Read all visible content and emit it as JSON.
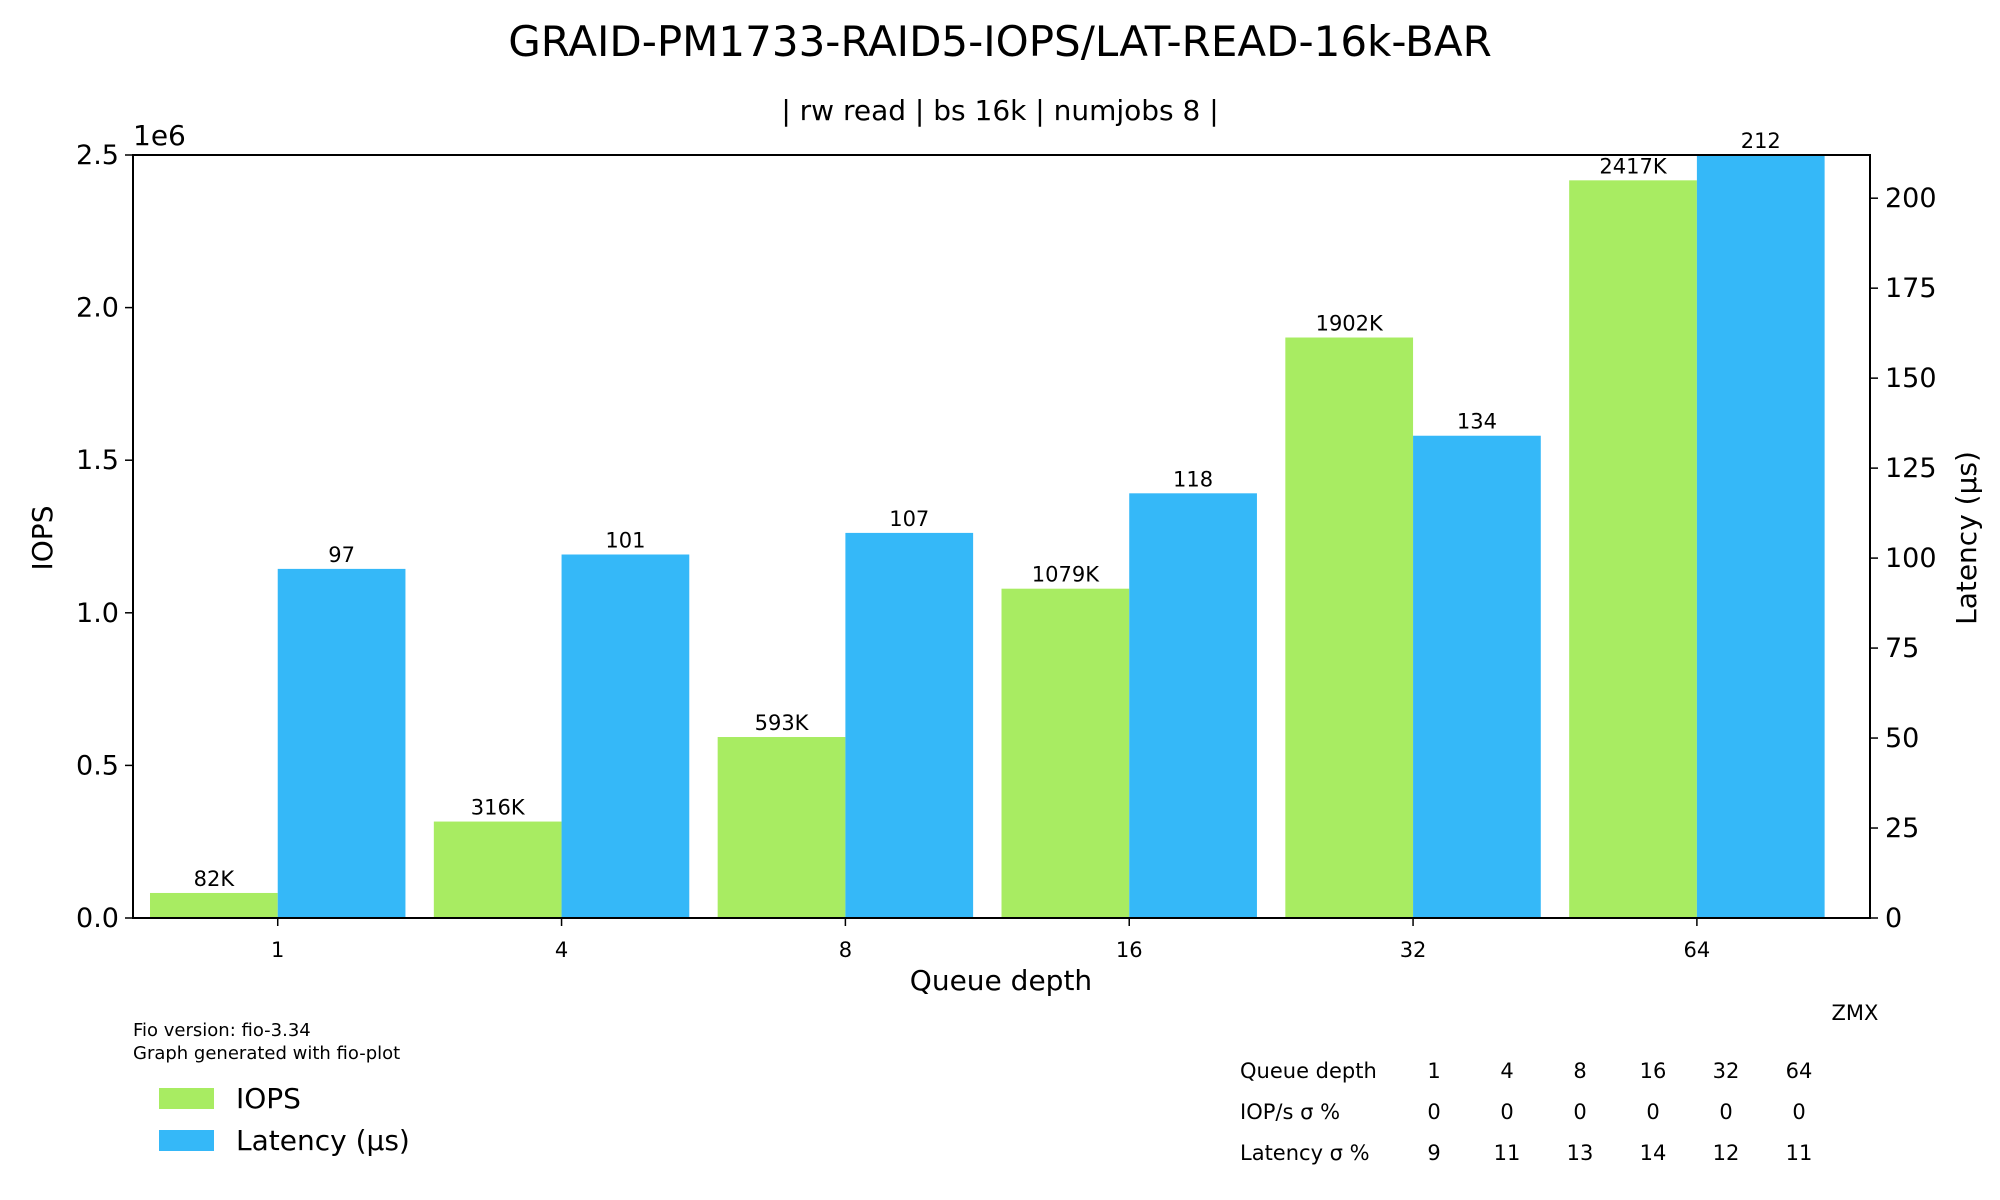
{
  "chart_data": {
    "type": "bar",
    "title": "GRAID-PM1733-RAID5-IOPS/LAT-READ-16k-BAR",
    "subtitle": "| rw read | bs 16k | numjobs 8 |",
    "xlabel": "Queue depth",
    "ylabel_left": "IOPS",
    "ylabel_right": "Latency (µs)",
    "left_axis_offset_label": "1e6",
    "categories": [
      "1",
      "4",
      "8",
      "16",
      "32",
      "64"
    ],
    "series": [
      {
        "name": "IOPS",
        "axis": "left",
        "color": "#a8ec62",
        "values": [
          82000,
          316000,
          593000,
          1079000,
          1902000,
          2417000
        ],
        "labels": [
          "82K",
          "316K",
          "593K",
          "1079K",
          "1902K",
          "2417K"
        ]
      },
      {
        "name": "Latency (µs)",
        "axis": "right",
        "color": "#35b8f8",
        "values": [
          97,
          101,
          107,
          118,
          134,
          212
        ],
        "labels": [
          "97",
          "101",
          "107",
          "118",
          "134",
          "212"
        ]
      }
    ],
    "ylim_left": [
      0,
      2500000
    ],
    "yticks_left": [
      "0.0",
      "0.5",
      "1.0",
      "1.5",
      "2.0",
      "2.5"
    ],
    "ylim_right": [
      0,
      212
    ],
    "yticks_right": [
      "0",
      "25",
      "50",
      "75",
      "100",
      "125",
      "150",
      "175",
      "200"
    ],
    "grid": false,
    "legend_position": "bottom-left"
  },
  "footer": {
    "fio_version": "Fio version: fio-3.34",
    "generated_with": "Graph generated with fio-plot",
    "watermark": "ZMX"
  },
  "stats_table": {
    "header": [
      "Queue depth",
      "1",
      "4",
      "8",
      "16",
      "32",
      "64"
    ],
    "rows": [
      [
        "IOP/s σ %",
        "0",
        "0",
        "0",
        "0",
        "0",
        "0"
      ],
      [
        "Latency σ %",
        "9",
        "11",
        "13",
        "14",
        "12",
        "11"
      ]
    ]
  }
}
